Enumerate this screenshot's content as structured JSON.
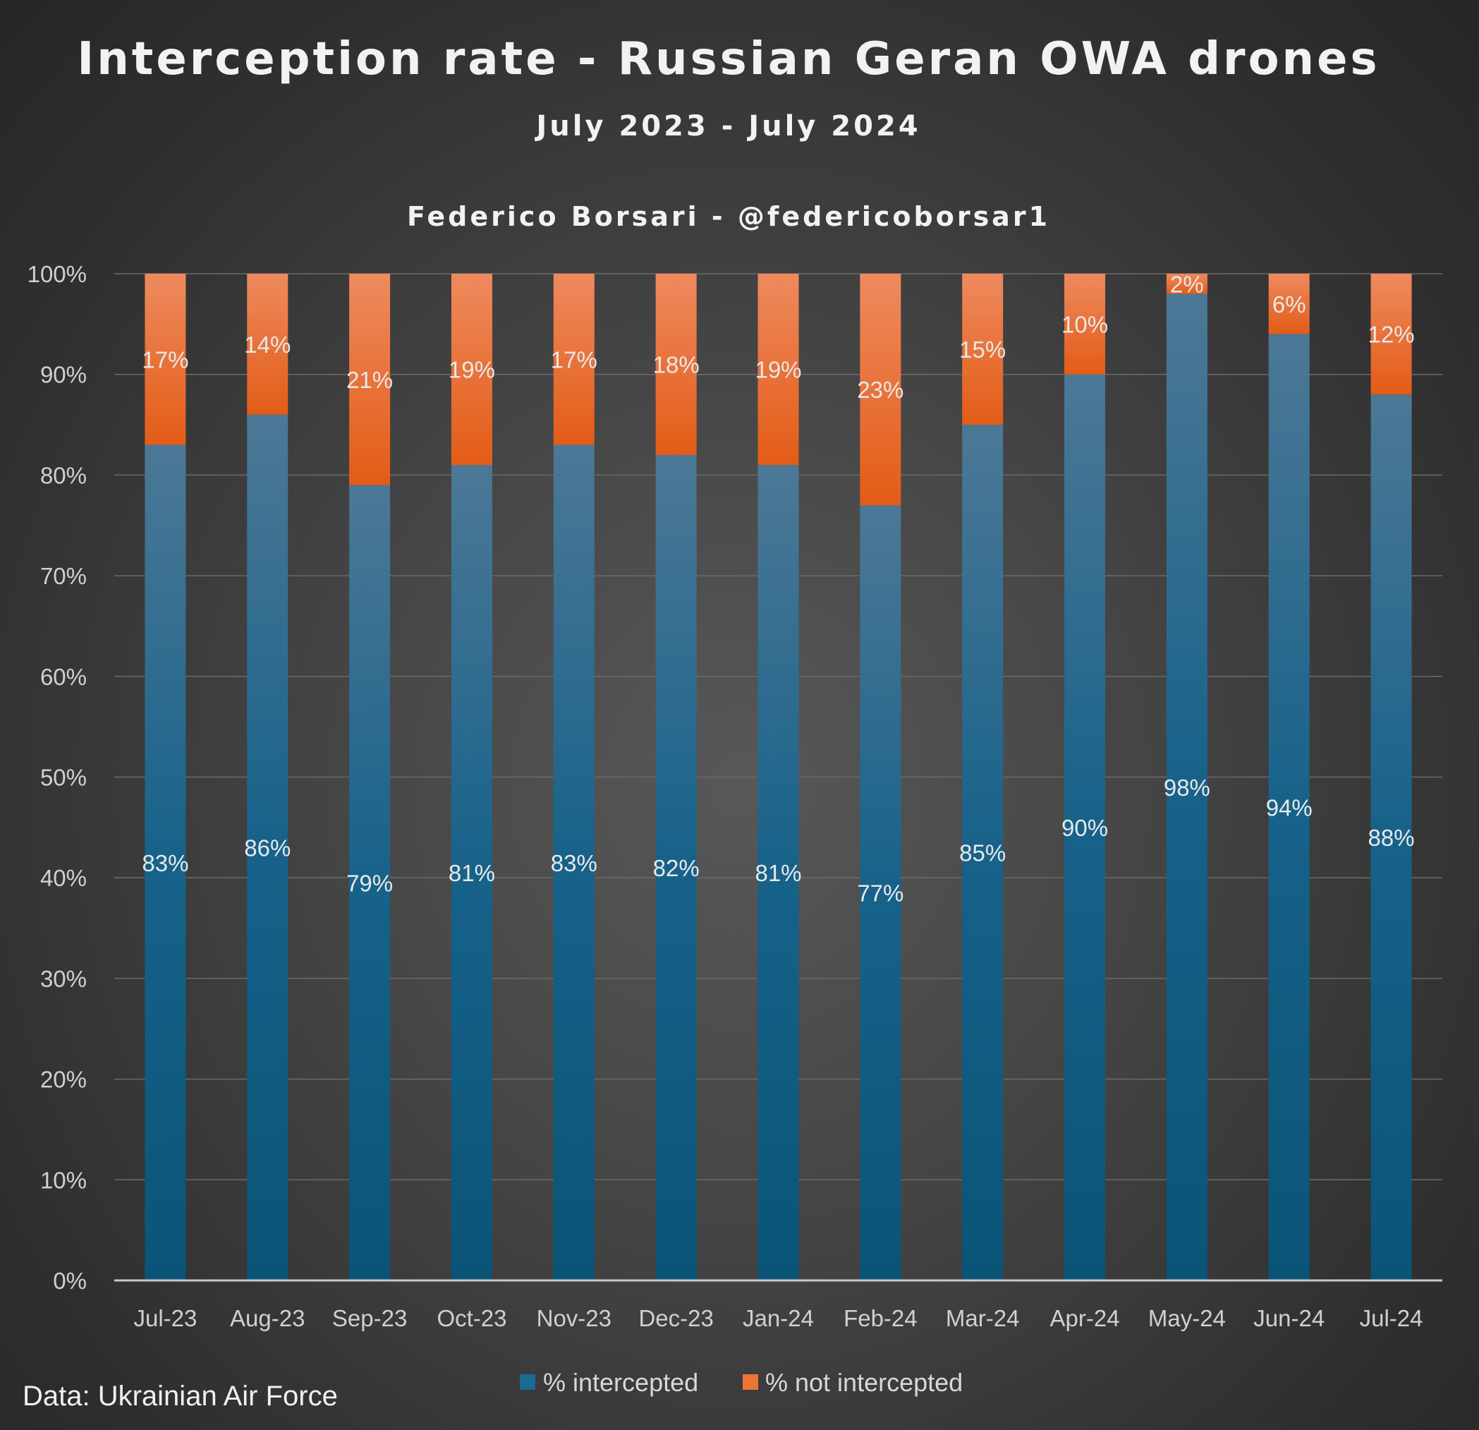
{
  "chart_data": {
    "type": "bar",
    "stacked": true,
    "title": "Interception rate - Russian Geran OWA drones",
    "subtitle": "July 2023 - July 2024",
    "author": "Federico Borsari - @federicoborsar1",
    "source": "Data: Ukrainian Air Force",
    "categories": [
      "Jul-23",
      "Aug-23",
      "Sep-23",
      "Oct-23",
      "Nov-23",
      "Dec-23",
      "Jan-24",
      "Feb-24",
      "Mar-24",
      "Apr-24",
      "May-24",
      "Jun-24",
      "Jul-24"
    ],
    "series": [
      {
        "name": "% intercepted",
        "color": "#0f5a80",
        "values": [
          83,
          86,
          79,
          81,
          83,
          82,
          81,
          77,
          85,
          90,
          98,
          94,
          88
        ],
        "labels": [
          "83%",
          "86%",
          "79%",
          "81%",
          "83%",
          "82%",
          "81%",
          "77%",
          "85%",
          "90%",
          "98%",
          "94%",
          "88%"
        ]
      },
      {
        "name": "% not intercepted",
        "color": "#e8601e",
        "values": [
          17,
          14,
          21,
          19,
          17,
          18,
          19,
          23,
          15,
          10,
          2,
          6,
          12
        ],
        "labels": [
          "17%",
          "14%",
          "21%",
          "19%",
          "17%",
          "18%",
          "19%",
          "23%",
          "15%",
          "10%",
          "2%",
          "6%",
          "12%"
        ]
      }
    ],
    "ylim": [
      0,
      100
    ],
    "yticks": [
      "0%",
      "10%",
      "20%",
      "30%",
      "40%",
      "50%",
      "60%",
      "70%",
      "80%",
      "90%",
      "100%"
    ],
    "grid": true,
    "legend_position": "bottom"
  }
}
